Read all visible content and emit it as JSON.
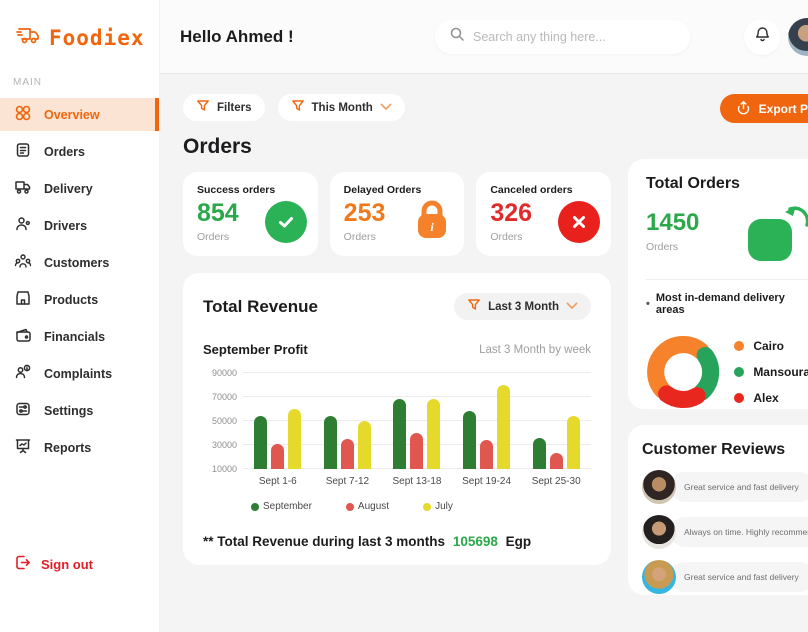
{
  "brand": {
    "name": "Foodiex",
    "section_label": "MAIN"
  },
  "sidebar": {
    "items": [
      {
        "label": "Overview"
      },
      {
        "label": "Orders"
      },
      {
        "label": "Delivery"
      },
      {
        "label": "Drivers"
      },
      {
        "label": "Customers"
      },
      {
        "label": "Products"
      },
      {
        "label": "Financials"
      },
      {
        "label": "Complaints"
      },
      {
        "label": "Settings"
      },
      {
        "label": "Reports"
      }
    ],
    "sign_out": "Sign out"
  },
  "header": {
    "greeting": "Hello Ahmed !",
    "search_placeholder": "Search any thing here..."
  },
  "toolbar": {
    "filters_label": "Filters",
    "period_label": "This Month",
    "export_label": "Export PDF"
  },
  "orders_section": {
    "title": "Orders",
    "cards": [
      {
        "title": "Success orders",
        "value": "854",
        "unit": "Orders",
        "color": "#2aa84a"
      },
      {
        "title": "Delayed Orders",
        "value": "253",
        "unit": "Orders",
        "color": "#f0791b"
      },
      {
        "title": "Canceled orders",
        "value": "326",
        "unit": "Orders",
        "color": "#e02b2b"
      }
    ]
  },
  "revenue": {
    "title": "Total Revenue",
    "filter_label": "Last 3 Month",
    "subtitle": "September Profit",
    "subtitle_right": "Last 3 Month by week",
    "footnote_prefix": "** Total Revenue during last 3 months",
    "footnote_value": "105698",
    "footnote_suffix": "Egp"
  },
  "chart_data": [
    {
      "type": "bar",
      "title": "September Profit",
      "subtitle": "Last 3 Month by week",
      "categories": [
        "Sept 1-6",
        "Sept 7-12",
        "Sept 13-18",
        "Sept 19-24",
        "Sept 25-30"
      ],
      "series": [
        {
          "name": "September",
          "color": "#2e7d33",
          "values": [
            54000,
            54000,
            68000,
            58000,
            36000
          ]
        },
        {
          "name": "August",
          "color": "#e05750",
          "values": [
            31000,
            35000,
            40000,
            34000,
            23000
          ]
        },
        {
          "name": "July",
          "color": "#e5d92b",
          "values": [
            60000,
            50000,
            68000,
            80000,
            54000
          ]
        }
      ],
      "ylim": [
        10000,
        90000
      ],
      "yticks": [
        10000,
        30000,
        50000,
        70000,
        90000
      ],
      "grid": true,
      "legend_position": "bottom"
    },
    {
      "type": "pie",
      "title": "Most in-demand delivery areas",
      "labels": [
        "Cairo",
        "Mansoura",
        "Alex"
      ],
      "values": [
        53,
        26,
        21
      ],
      "colors": [
        "#f6822b",
        "#27a35b",
        "#e8271e"
      ]
    }
  ],
  "total_orders": {
    "title": "Total Orders",
    "value": "1450",
    "unit": "Orders",
    "areas_bullet": "•",
    "areas_title": "Most in-demand delivery areas",
    "legend": [
      {
        "label": "Cairo",
        "color": "#f6822b"
      },
      {
        "label": "Mansoura",
        "color": "#27a35b"
      },
      {
        "label": "Alex",
        "color": "#e8271e"
      }
    ]
  },
  "reviews": {
    "title": "Customer Reviews",
    "items": [
      {
        "text": "Great service and fast delivery"
      },
      {
        "text": "Always on time. Highly recommend"
      },
      {
        "text": "Great service and fast delivery"
      }
    ]
  }
}
